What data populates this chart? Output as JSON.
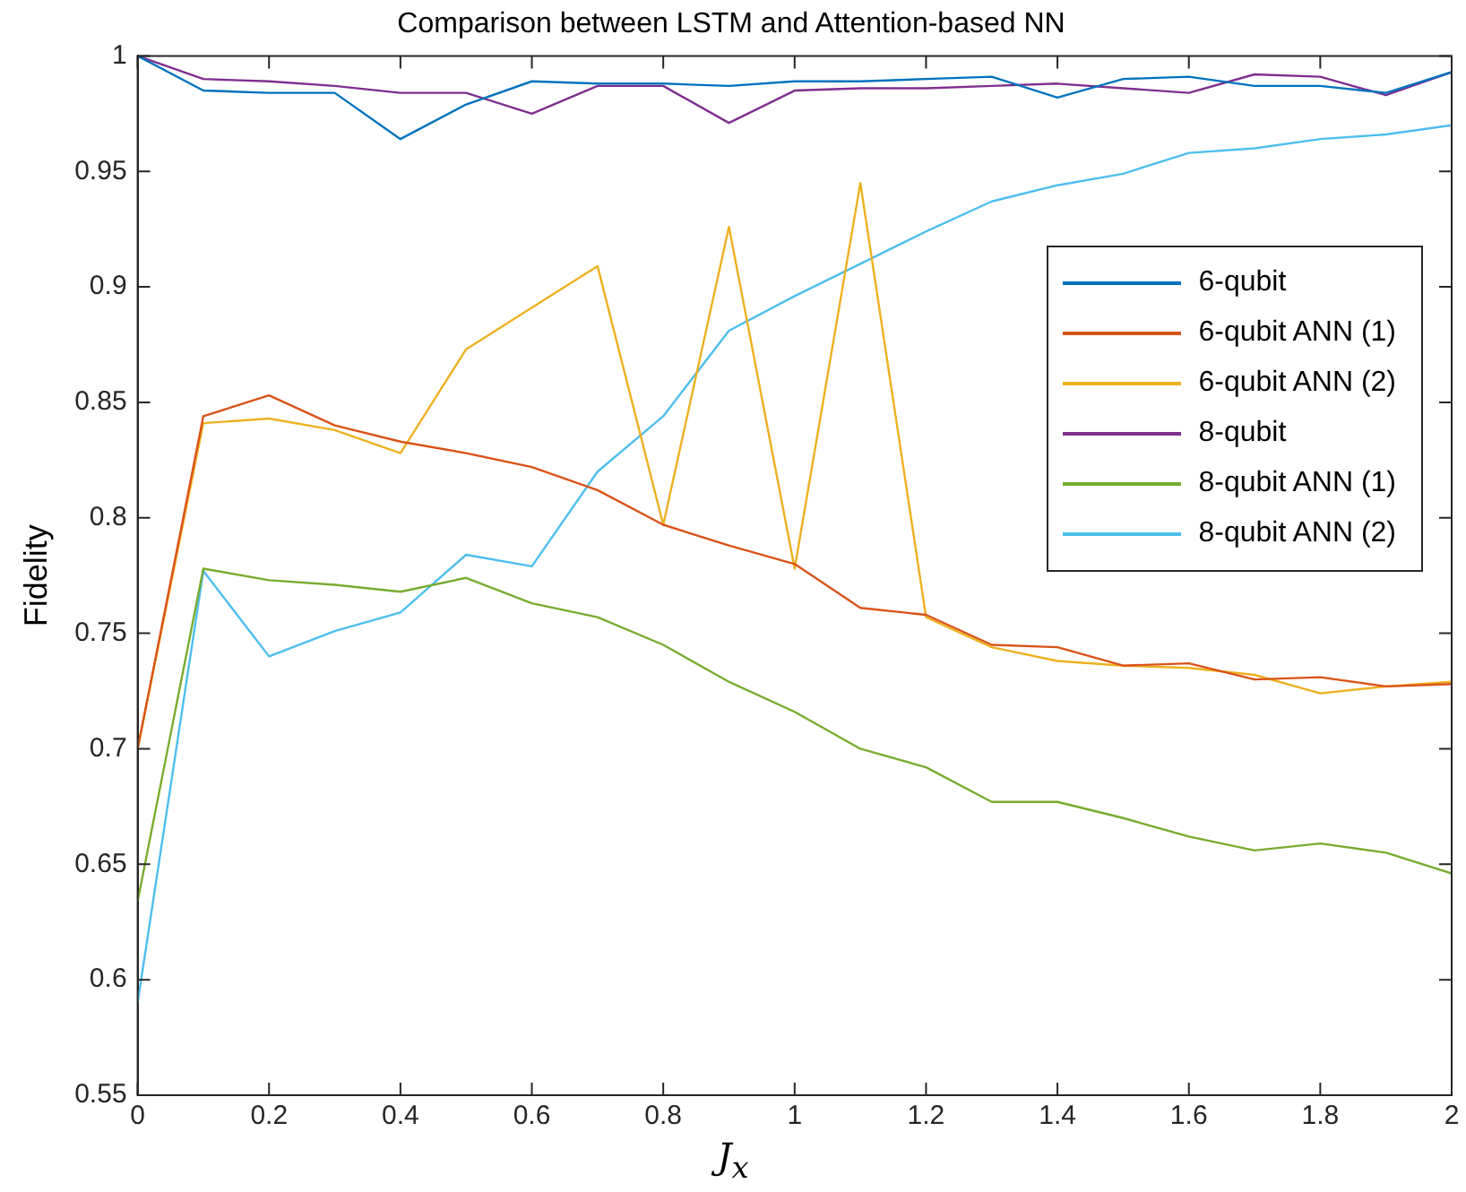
{
  "chart_data": {
    "type": "line",
    "title": "Comparison between LSTM and Attention-based NN",
    "xlabel": "J$_{x}$",
    "ylabel": "Fidelity",
    "x": [
      0,
      0.1,
      0.2,
      0.3,
      0.4,
      0.5,
      0.6,
      0.7,
      0.8,
      0.9,
      1,
      1.1,
      1.2,
      1.3,
      1.4,
      1.5,
      1.6,
      1.7,
      1.8,
      1.9,
      2
    ],
    "xlim": [
      0,
      2
    ],
    "xticks": [
      0,
      0.2,
      0.4,
      0.6,
      0.8,
      1,
      1.2,
      1.4,
      1.6,
      1.8,
      2
    ],
    "ylim": [
      0.55,
      1
    ],
    "yticks": [
      0.55,
      0.6,
      0.65,
      0.7,
      0.75,
      0.8,
      0.85,
      0.9,
      0.95,
      1
    ],
    "legend": "top right",
    "marker": "none",
    "line_style": "solid",
    "series": [
      {
        "name": "6-qubit",
        "color": "#0072bd",
        "values": [
          1.0,
          0.985,
          0.984,
          0.984,
          0.964,
          0.979,
          0.989,
          0.988,
          0.988,
          0.987,
          0.989,
          0.989,
          0.99,
          0.991,
          0.982,
          0.99,
          0.991,
          0.987,
          0.987,
          0.984,
          0.993
        ]
      },
      {
        "name": "6-qubit ANN (1)",
        "color": "#d95319",
        "values": [
          0.7,
          0.844,
          0.853,
          0.84,
          0.833,
          0.828,
          0.822,
          0.812,
          0.797,
          0.788,
          0.78,
          0.761,
          0.758,
          0.745,
          0.744,
          0.736,
          0.737,
          0.73,
          0.731,
          0.727,
          0.728
        ]
      },
      {
        "name": "6-qubit ANN (2)",
        "color": "#edb120",
        "values": [
          0.7,
          0.841,
          0.843,
          0.838,
          0.828,
          0.873,
          0.891,
          0.909,
          0.797,
          0.926,
          0.778,
          0.945,
          0.757,
          0.744,
          0.738,
          0.736,
          0.735,
          0.732,
          0.724,
          0.727,
          0.729
        ]
      },
      {
        "name": "8-qubit",
        "color": "#7e2f8e",
        "values": [
          1.0,
          0.99,
          0.989,
          0.987,
          0.984,
          0.984,
          0.975,
          0.987,
          0.987,
          0.971,
          0.985,
          0.986,
          0.986,
          0.987,
          0.988,
          0.986,
          0.984,
          0.992,
          0.991,
          0.983,
          0.993
        ]
      },
      {
        "name": "8-qubit ANN (1)",
        "color": "#77ac30",
        "values": [
          0.634,
          0.778,
          0.773,
          0.771,
          0.768,
          0.774,
          0.763,
          0.757,
          0.745,
          0.729,
          0.716,
          0.7,
          0.692,
          0.677,
          0.677,
          0.67,
          0.662,
          0.656,
          0.659,
          0.655,
          0.646
        ]
      },
      {
        "name": "8-qubit ANN (2)",
        "color": "#4dbeee",
        "values": [
          0.59,
          0.777,
          0.74,
          0.751,
          0.759,
          0.784,
          0.779,
          0.82,
          0.844,
          0.881,
          0.896,
          0.91,
          0.924,
          0.937,
          0.944,
          0.949,
          0.958,
          0.96,
          0.964,
          0.966,
          0.97
        ]
      }
    ]
  }
}
